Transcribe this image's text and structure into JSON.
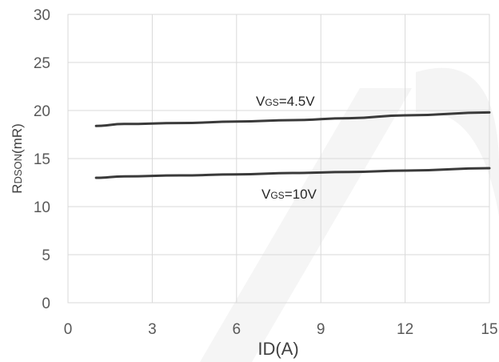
{
  "chart_data": {
    "type": "line",
    "xlabel": "ID(A)",
    "ylabel_main": "R",
    "ylabel_sub": "DSON",
    "ylabel_unit": "(mR)",
    "xlim": [
      0,
      15
    ],
    "ylim": [
      0,
      30
    ],
    "x_ticks": [
      "0",
      "3",
      "6",
      "9",
      "12",
      "15"
    ],
    "y_ticks": [
      "0",
      "5",
      "10",
      "15",
      "20",
      "25",
      "30"
    ],
    "grid": true,
    "series": [
      {
        "name": "VGS=4.5V",
        "x": [
          1,
          2,
          4,
          6,
          8,
          10,
          12,
          15
        ],
        "values": [
          18.4,
          18.6,
          18.7,
          18.85,
          19.0,
          19.2,
          19.5,
          19.8
        ]
      },
      {
        "name": "VGS=10V",
        "x": [
          1,
          2,
          4,
          6,
          8,
          10,
          12,
          15
        ],
        "values": [
          13.0,
          13.15,
          13.25,
          13.35,
          13.5,
          13.6,
          13.75,
          14.0
        ]
      }
    ],
    "annotations": [
      {
        "main": "V",
        "sub": "GS",
        "rest": "=4.5V",
        "series": 0
      },
      {
        "main": "V",
        "sub": "GS",
        "rest": "=10V",
        "series": 1
      }
    ],
    "line_color": "#3a3a3a",
    "grid_color": "#d9d9d9"
  }
}
